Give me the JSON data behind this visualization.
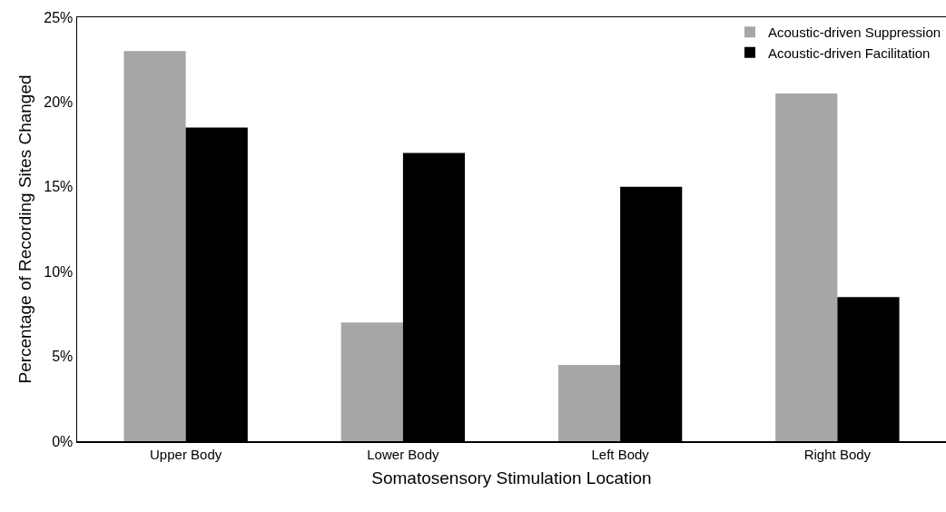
{
  "chart_data": {
    "type": "bar",
    "xlabel": "Somatosensory Stimulation Location",
    "ylabel": "Percentage of Recording Sites Changed",
    "categories": [
      "Upper Body",
      "Lower Body",
      "Left Body",
      "Right Body"
    ],
    "series": [
      {
        "name": "Acoustic-driven Suppression",
        "color": "#a6a6a6",
        "values": [
          23,
          7,
          4.5,
          20.5
        ]
      },
      {
        "name": "Acoustic-driven Facilitation",
        "color": "#000000",
        "values": [
          18.5,
          17,
          15,
          8.5
        ]
      }
    ],
    "ylim": [
      0,
      25
    ],
    "yticks": [
      {
        "value": 0,
        "label": "0%"
      },
      {
        "value": 5,
        "label": "5%"
      },
      {
        "value": 10,
        "label": "10%"
      },
      {
        "value": 15,
        "label": "15%"
      },
      {
        "value": 20,
        "label": "20%"
      },
      {
        "value": 25,
        "label": "25%"
      }
    ],
    "grid": false,
    "legend": "top right"
  }
}
